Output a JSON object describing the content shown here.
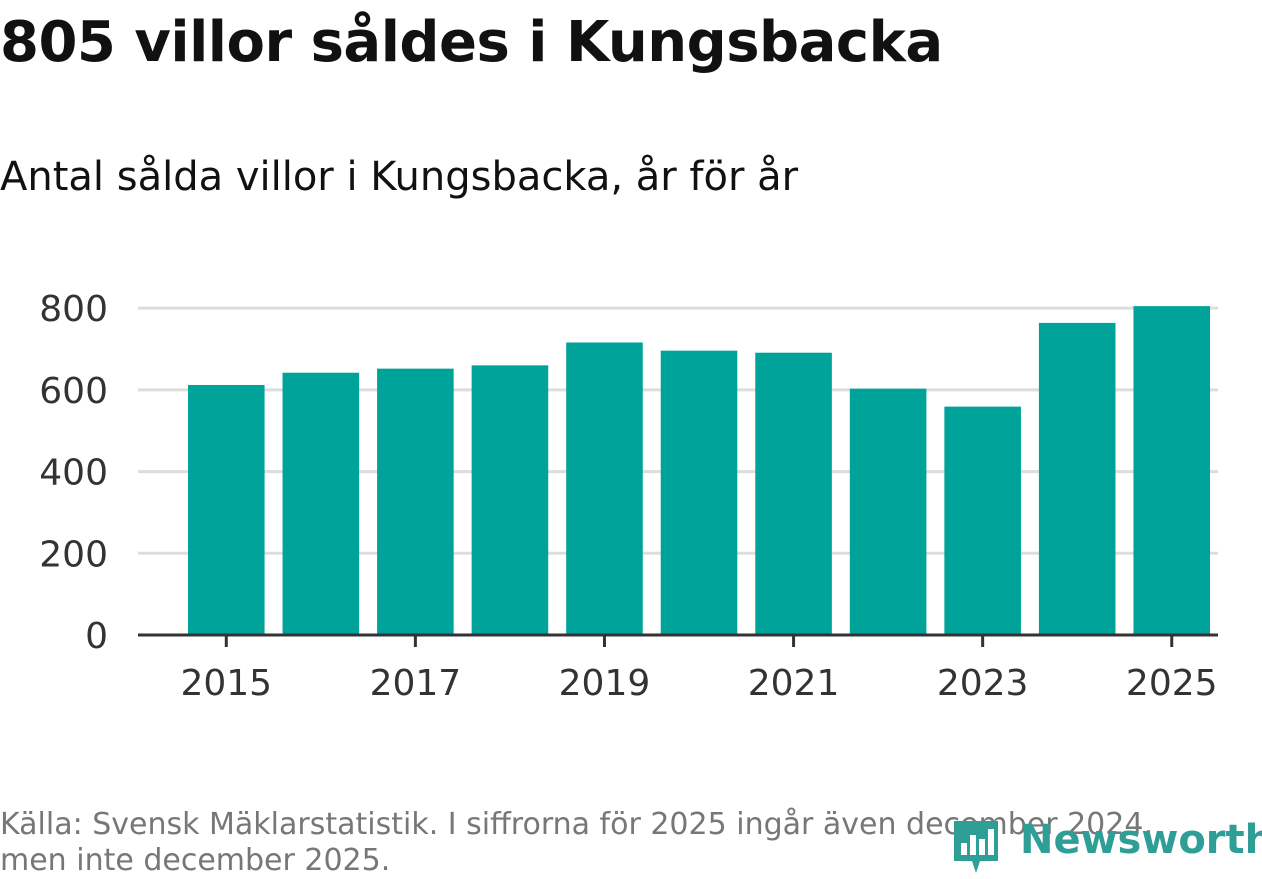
{
  "header": {
    "title": "805 villor såldes i Kungsbacka",
    "subtitle": "Antal sålda villor i Kungsbacka, år för år"
  },
  "footer": {
    "source": "Källa: Svensk Mäklarstatistik. I siffrorna för 2025 ingår även december 2024, men inte december 2025."
  },
  "brand": {
    "name": "Newsworthy",
    "icon": "newsworthy-logo-icon",
    "color": "#2f9e96"
  },
  "colors": {
    "bar": "#00a39a",
    "grid": "#dddddd",
    "axis": "#333333",
    "text": "#333333"
  },
  "chart_data": {
    "type": "bar",
    "categories": [
      "2015",
      "2016",
      "2017",
      "2018",
      "2019",
      "2020",
      "2021",
      "2022",
      "2023",
      "2024",
      "2025"
    ],
    "values": [
      612,
      642,
      652,
      660,
      716,
      696,
      691,
      603,
      559,
      764,
      805
    ],
    "x_tick_labels": [
      "2015",
      "2017",
      "2019",
      "2021",
      "2023",
      "2025"
    ],
    "y_ticks": [
      0,
      200,
      400,
      600,
      800
    ],
    "ylim": [
      0,
      820
    ],
    "grid": true,
    "legend": "none"
  }
}
